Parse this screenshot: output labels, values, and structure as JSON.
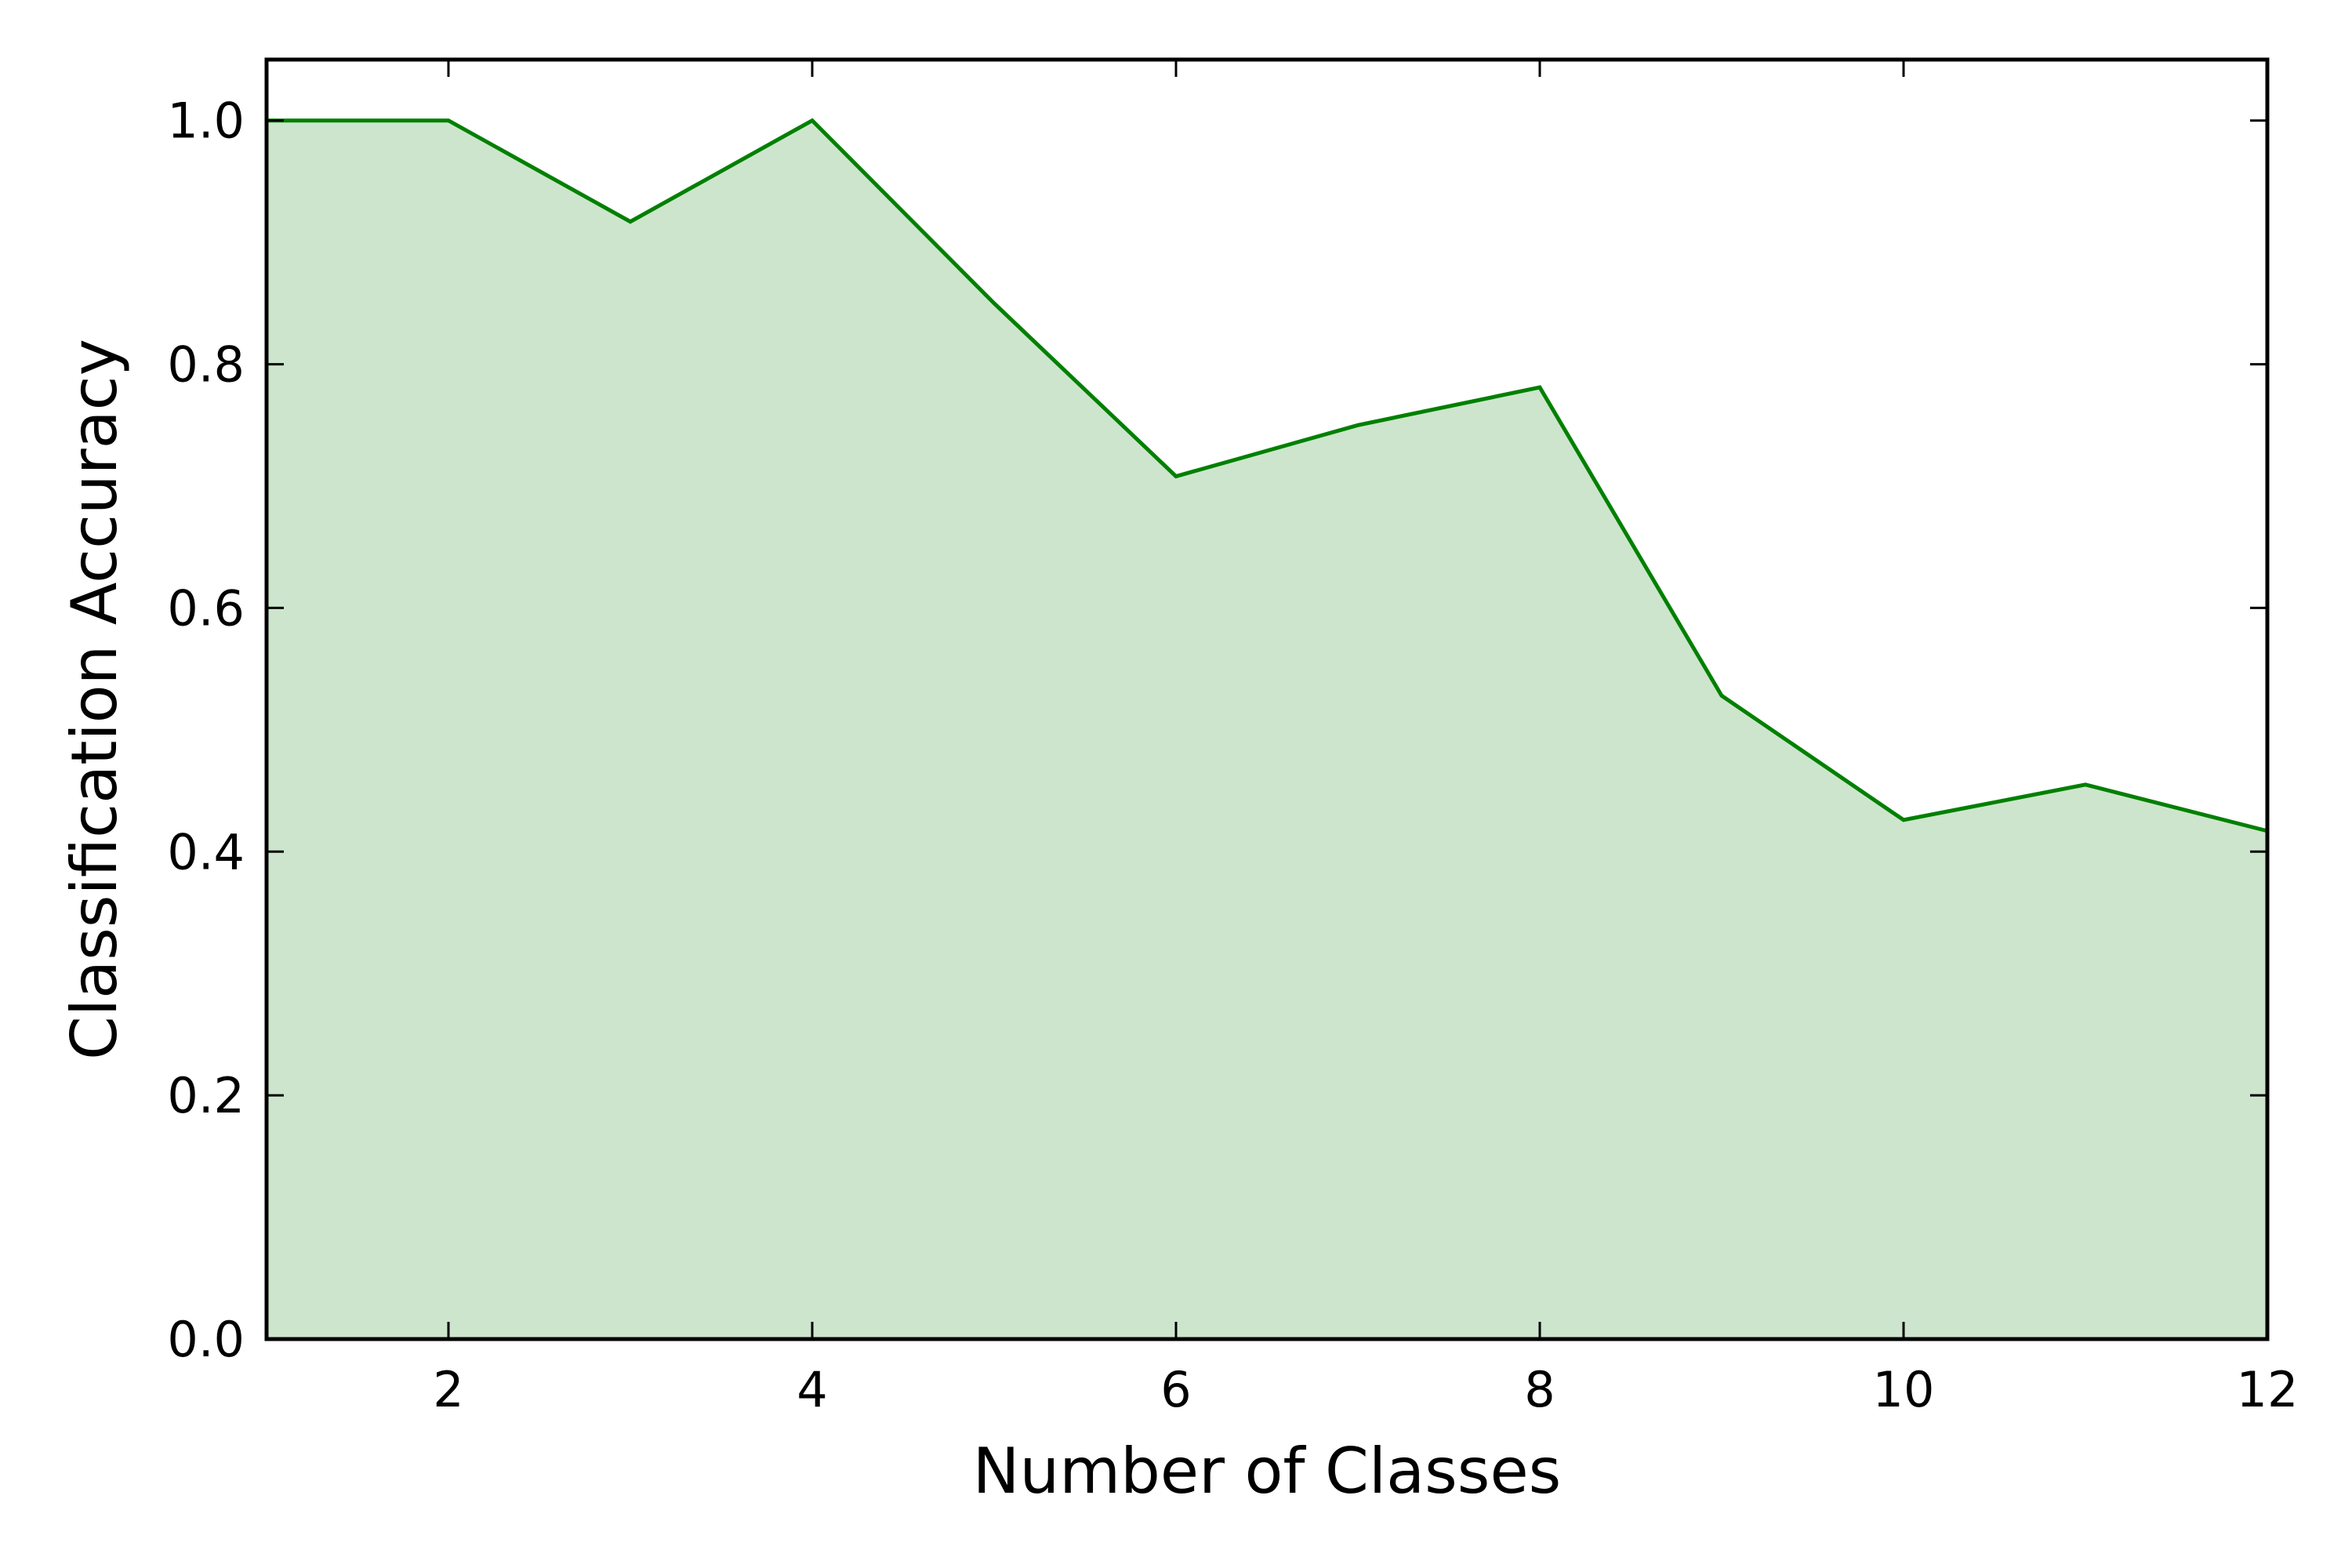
{
  "chart_data": {
    "type": "area",
    "title": "",
    "xlabel": "Number of Classes",
    "ylabel": "Classification Accuracy",
    "x": [
      1,
      2,
      3,
      4,
      5,
      6,
      7,
      8,
      9,
      10,
      11,
      12
    ],
    "series": [
      {
        "values": [
          1.0,
          1.0,
          0.917,
          1.0,
          0.85,
          0.708,
          0.75,
          0.781,
          0.528,
          0.426,
          0.455,
          0.417
        ],
        "line_color": "#008000",
        "fill_color": "#cde5cd"
      }
    ],
    "xlim": [
      1,
      12
    ],
    "ylim": [
      0,
      1.05
    ],
    "x_ticks": [
      2,
      4,
      6,
      8,
      10,
      12
    ],
    "x_tick_labels": [
      "2",
      "4",
      "6",
      "8",
      "10",
      "12"
    ],
    "y_ticks": [
      0,
      0.2,
      0.4,
      0.6,
      0.8,
      1.0
    ],
    "y_tick_labels": [
      "0.0",
      "0.2",
      "0.4",
      "0.6",
      "0.8",
      "1.0"
    ],
    "grid": false,
    "legend": "none"
  }
}
